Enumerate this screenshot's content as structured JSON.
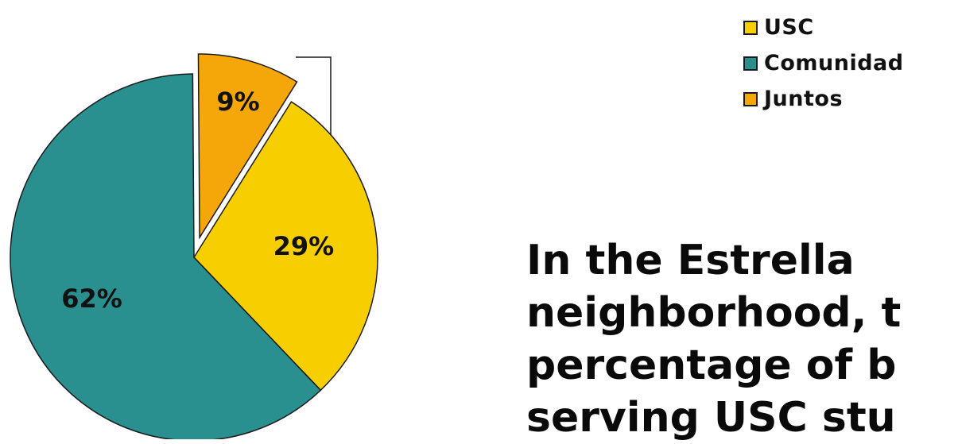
{
  "chart_data": {
    "type": "pie",
    "categories": [
      "USC",
      "Comunidad",
      "Juntos"
    ],
    "values": [
      29,
      62,
      9
    ],
    "labels": [
      "29%",
      "62%",
      "9%"
    ],
    "colors": [
      "#f7cf00",
      "#2a8f8f",
      "#f5a70a"
    ],
    "exploded": "Juntos",
    "legend_position": "top-right"
  },
  "legend": {
    "items": [
      {
        "label": "USC",
        "color": "#f7cf00"
      },
      {
        "label": "Comunidad",
        "color": "#2a8f8f"
      },
      {
        "label": "Juntos",
        "color": "#f5a70a"
      }
    ]
  },
  "caption": {
    "lines": [
      "In the Estrella",
      "neighborhood, t",
      "percentage of b",
      "serving USC stu"
    ]
  }
}
